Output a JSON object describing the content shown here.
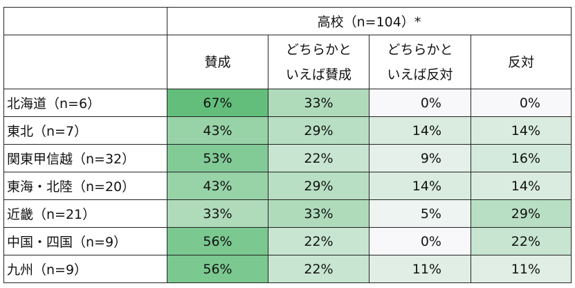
{
  "header": {
    "group_label": "高校（n=104）*",
    "columns": [
      "賛成",
      "どちらかと\nいえば賛成",
      "どちらかと\nいえば反対",
      "反対"
    ],
    "column_lines": [
      [
        "賛成"
      ],
      [
        "どちらかと",
        "いえば賛成"
      ],
      [
        "どちらかと",
        "いえば反対"
      ],
      [
        "反対"
      ]
    ]
  },
  "colors": {
    "low": "#F8F8FA",
    "high": "#63BE7B",
    "border": "#222222"
  },
  "rows": [
    {
      "label": "北海道（n=6）",
      "values": [
        "67%",
        "33%",
        "0%",
        "0%"
      ],
      "nums": [
        67,
        33,
        0,
        0
      ]
    },
    {
      "label": "東北（n=7）",
      "values": [
        "43%",
        "29%",
        "14%",
        "14%"
      ],
      "nums": [
        43,
        29,
        14,
        14
      ]
    },
    {
      "label": "関東甲信越（n=32）",
      "values": [
        "53%",
        "22%",
        "9%",
        "16%"
      ],
      "nums": [
        53,
        22,
        9,
        16
      ]
    },
    {
      "label": "東海・北陸（n=20）",
      "values": [
        "43%",
        "29%",
        "14%",
        "14%"
      ],
      "nums": [
        43,
        29,
        14,
        14
      ]
    },
    {
      "label": "近畿（n=21）",
      "values": [
        "33%",
        "33%",
        "5%",
        "29%"
      ],
      "nums": [
        33,
        33,
        5,
        29
      ]
    },
    {
      "label": "中国・四国（n=9）",
      "values": [
        "56%",
        "22%",
        "0%",
        "22%"
      ],
      "nums": [
        56,
        22,
        0,
        22
      ]
    },
    {
      "label": "九州（n=9）",
      "values": [
        "56%",
        "22%",
        "11%",
        "11%"
      ],
      "nums": [
        56,
        22,
        11,
        11
      ]
    }
  ]
}
